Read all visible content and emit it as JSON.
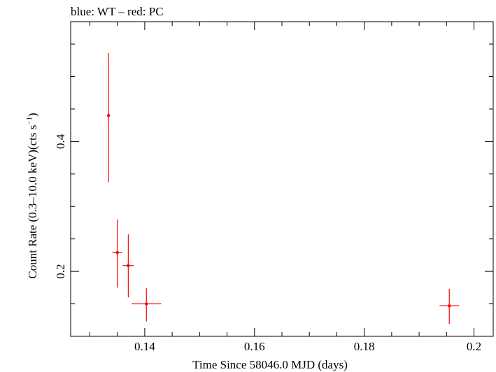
{
  "header": "blue: WT – red: PC",
  "chart_data": {
    "type": "scatter",
    "title": "blue: WT – red: PC",
    "xlabel": "Time Since 58046.0 MJD (days)",
    "ylabel_main": "Count Rate (0.3–10.0 keV)(cts s",
    "ylabel_sup": "−1",
    "ylabel_tail": ")",
    "xlim": [
      0.1265,
      0.2035
    ],
    "ylim": [
      0.1,
      0.5845
    ],
    "xticks": [
      {
        "value": 0.14,
        "label": "0.14"
      },
      {
        "value": 0.16,
        "label": "0.16"
      },
      {
        "value": 0.18,
        "label": "0.18"
      },
      {
        "value": 0.2,
        "label": "0.2"
      }
    ],
    "xminor_step": 0.005,
    "yticks": [
      {
        "value": 0.2,
        "label": "0.2"
      },
      {
        "value": 0.4,
        "label": "0.4"
      }
    ],
    "yminor_step": 0.05,
    "grid": false,
    "series": [
      {
        "color": "#ff0000",
        "points": [
          {
            "x": 0.1334,
            "xerr": 0.0002,
            "y": 0.44,
            "ylo": 0.337,
            "yhi": 0.536
          },
          {
            "x": 0.135,
            "xerr": 0.0009,
            "y": 0.229,
            "ylo": 0.175,
            "yhi": 0.28
          },
          {
            "x": 0.137,
            "xerr": 0.001,
            "y": 0.209,
            "ylo": 0.16,
            "yhi": 0.257
          },
          {
            "x": 0.1403,
            "xerr": 0.0027,
            "y": 0.15,
            "ylo": 0.123,
            "yhi": 0.174
          },
          {
            "x": 0.1955,
            "xerr": 0.0018,
            "y": 0.147,
            "ylo": 0.119,
            "yhi": 0.173
          }
        ]
      }
    ]
  }
}
